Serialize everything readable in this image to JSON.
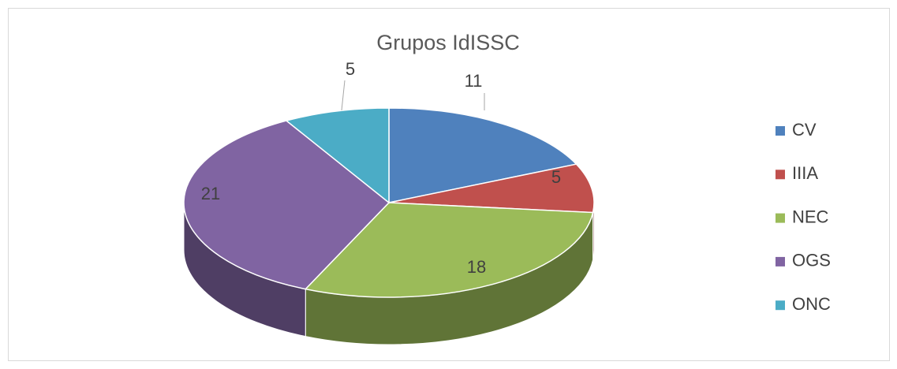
{
  "chart_data": {
    "type": "pie",
    "title": "Grupos IdISSC",
    "categories": [
      "CV",
      "IIIA",
      "NEC",
      "OGS",
      "ONC"
    ],
    "values": [
      11,
      5,
      18,
      21,
      5
    ],
    "colors": [
      "#4f81bd",
      "#c0504d",
      "#9bbb59",
      "#8064a2",
      "#4bacc6"
    ],
    "legend": "right"
  }
}
